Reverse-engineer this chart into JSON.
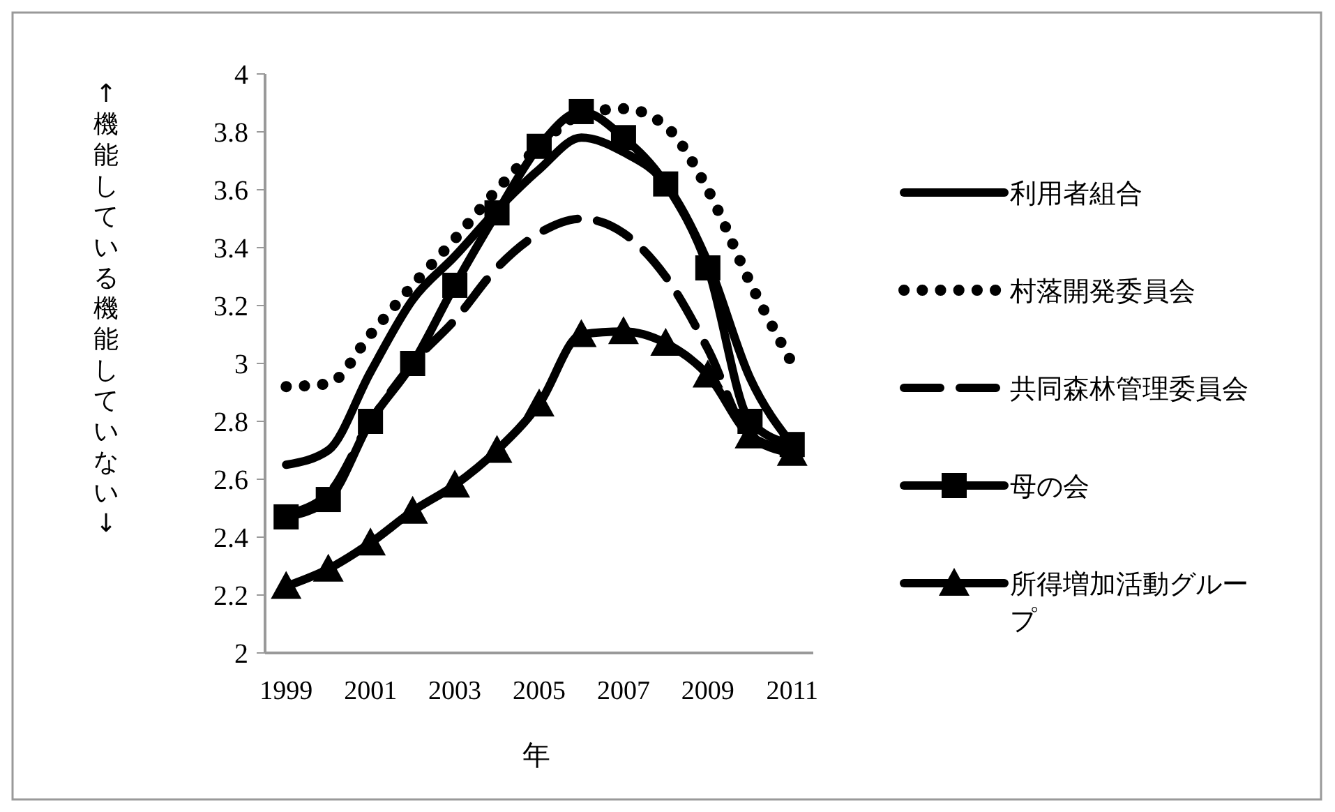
{
  "chart_data": {
    "type": "line",
    "xlabel": "年",
    "ylabel": "↑機能している機能していない↓",
    "x": [
      1999,
      2000,
      2001,
      2002,
      2003,
      2004,
      2005,
      2006,
      2007,
      2008,
      2009,
      2010,
      2011
    ],
    "xlim": [
      1998.5,
      2011.5
    ],
    "xticks": [
      1999,
      2001,
      2003,
      2005,
      2007,
      2009,
      2011
    ],
    "ylim": [
      2,
      4
    ],
    "yticks": [
      2,
      2.2,
      2.4,
      2.6,
      2.8,
      3,
      3.2,
      3.4,
      3.6,
      3.8,
      4
    ],
    "grid": false,
    "legend": "right",
    "marker": "none",
    "series": [
      {
        "name": "利用者組合",
        "color": "#000000",
        "line_style": "solid",
        "values": [
          2.65,
          2.7,
          2.97,
          3.22,
          3.37,
          3.53,
          3.67,
          3.78,
          3.73,
          3.62,
          3.35,
          2.95,
          2.72
        ]
      },
      {
        "name": "村落開発委員会",
        "color": "#000000",
        "line_style": "dotted",
        "values": [
          2.92,
          2.93,
          3.1,
          3.27,
          3.43,
          3.6,
          3.75,
          3.86,
          3.88,
          3.82,
          3.6,
          3.28,
          3.0
        ]
      },
      {
        "name": "共同森林管理委員会",
        "color": "#000000",
        "line_style": "dashed",
        "values": [
          2.48,
          2.55,
          2.8,
          3.0,
          3.15,
          3.33,
          3.45,
          3.5,
          3.45,
          3.3,
          3.05,
          2.75,
          2.7
        ]
      },
      {
        "name": "母の会",
        "color": "#000000",
        "line_style": "solid",
        "marker": "square",
        "values": [
          2.47,
          2.53,
          2.8,
          3.0,
          3.27,
          3.52,
          3.75,
          3.87,
          3.78,
          3.62,
          3.33,
          2.8,
          2.72
        ]
      },
      {
        "name": "所得増加活動グループ",
        "color": "#000000",
        "line_style": "solid",
        "marker": "triangle",
        "values": [
          2.23,
          2.29,
          2.38,
          2.49,
          2.58,
          2.7,
          2.86,
          3.1,
          3.11,
          3.07,
          2.96,
          2.75,
          2.69
        ]
      }
    ]
  }
}
